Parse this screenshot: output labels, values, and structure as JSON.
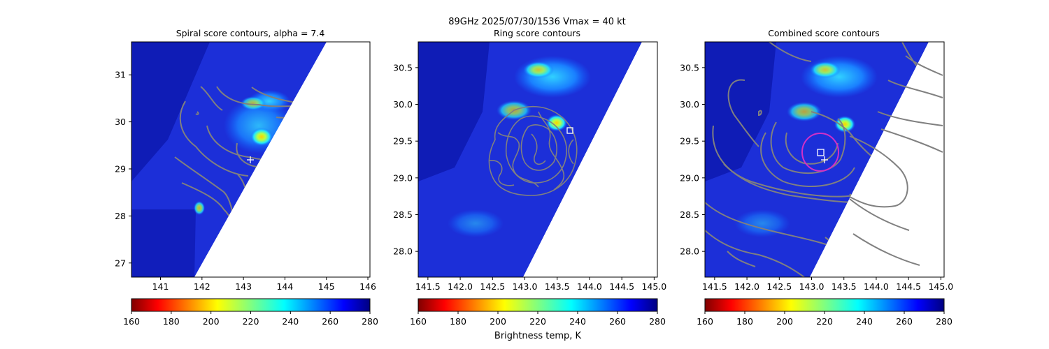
{
  "figure": {
    "suptitle_line1": "89GHz  2025/07/30/1536    Vmax = 40 kt",
    "colorbar_label": "Brightness temp, K"
  },
  "chart_data": [
    {
      "type": "heatmap",
      "title": "Spiral score contours, alpha =  7.4",
      "xlim": [
        140.3,
        146.05
      ],
      "ylim": [
        26.7,
        31.7
      ],
      "xticks": [
        141,
        142,
        143,
        144,
        145,
        146
      ],
      "yticks": [
        27,
        28,
        29,
        30,
        31
      ],
      "colorbar": {
        "min": 160,
        "max": 280,
        "ticks": [
          160,
          180,
          200,
          220,
          240,
          260,
          280
        ],
        "colormap": "jet_reversed"
      },
      "swath_edge": [
        [
          141.85,
          26.7
        ],
        [
          145.05,
          31.7
        ]
      ],
      "markers": [
        {
          "symbol": "plus",
          "x": 143.2,
          "y": 29.23
        }
      ],
      "warm_spots": [
        {
          "x": 143.5,
          "y": 29.75,
          "tb": 200
        },
        {
          "x": 143.35,
          "y": 30.4,
          "tb": 228
        },
        {
          "x": 142.0,
          "y": 28.2,
          "tb": 232
        }
      ],
      "contour_color": "#808080"
    },
    {
      "type": "heatmap",
      "title": "Ring score contours",
      "xlim": [
        141.35,
        145.05
      ],
      "ylim": [
        27.65,
        30.85
      ],
      "xticks": [
        141.5,
        142.0,
        142.5,
        143.0,
        143.5,
        144.0,
        144.5,
        145.0
      ],
      "yticks": [
        28.0,
        28.5,
        29.0,
        29.5,
        30.0,
        30.5
      ],
      "colorbar": {
        "min": 160,
        "max": 280,
        "ticks": [
          160,
          180,
          200,
          220,
          240,
          260,
          280
        ],
        "colormap": "jet_reversed"
      },
      "swath_edge": [
        [
          143.0,
          27.65
        ],
        [
          145.05,
          30.85
        ]
      ],
      "markers": [
        {
          "symbol": "square",
          "x": 143.73,
          "y": 29.63
        }
      ],
      "warm_spots": [
        {
          "x": 143.6,
          "y": 29.75,
          "tb": 185
        },
        {
          "x": 143.3,
          "y": 30.55,
          "tb": 235
        },
        {
          "x": 143.05,
          "y": 29.95,
          "tb": 232
        }
      ],
      "contour_color": "#808080"
    },
    {
      "type": "heatmap",
      "title": "Combined score contours",
      "xlim": [
        141.35,
        145.05
      ],
      "ylim": [
        27.65,
        30.85
      ],
      "xticks": [
        141.5,
        142.0,
        142.5,
        143.0,
        143.5,
        144.0,
        144.5,
        145.0
      ],
      "yticks": [
        28.0,
        28.5,
        29.0,
        29.5,
        30.0,
        30.5
      ],
      "colorbar": {
        "min": 160,
        "max": 280,
        "ticks": [
          160,
          180,
          200,
          220,
          240,
          260,
          280
        ],
        "colormap": "jet_reversed"
      },
      "swath_edge": [
        [
          143.0,
          27.65
        ],
        [
          145.05,
          30.85
        ]
      ],
      "markers": [
        {
          "symbol": "square",
          "x": 143.15,
          "y": 29.33
        },
        {
          "symbol": "plus",
          "x": 143.2,
          "y": 29.22
        }
      ],
      "magenta_circle": {
        "x": 143.17,
        "y": 29.32,
        "rx_deg": 0.24,
        "ry_deg": 0.25
      },
      "warm_spots": [
        {
          "x": 143.5,
          "y": 29.72,
          "tb": 185
        },
        {
          "x": 143.3,
          "y": 30.55,
          "tb": 235
        }
      ],
      "contour_color": "#808080"
    }
  ]
}
